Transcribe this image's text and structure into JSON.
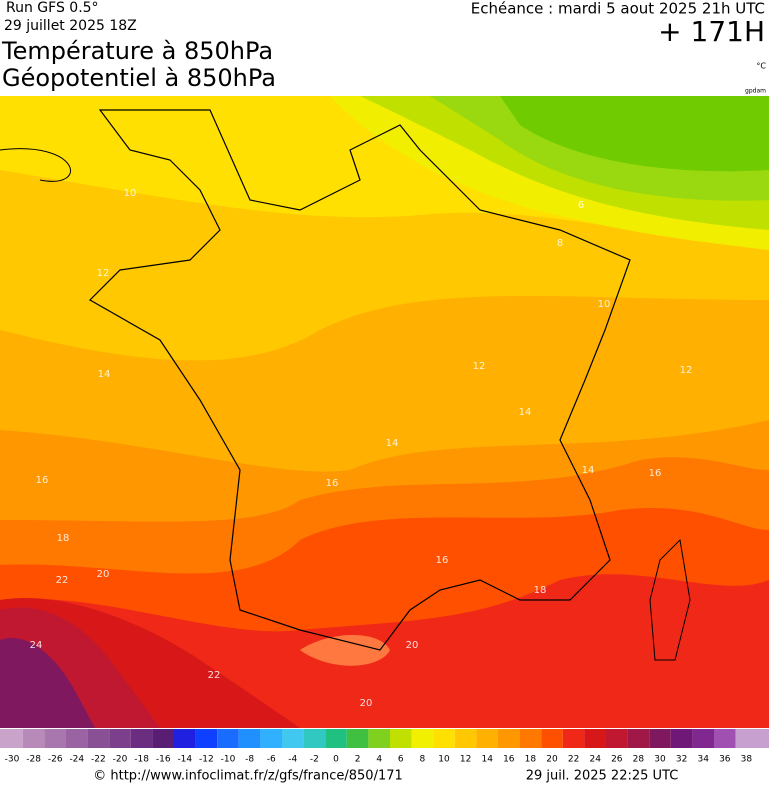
{
  "header": {
    "run": "Run GFS 0.5°",
    "run_date": "29 juillet 2025 18Z",
    "title_1": "Température à 850hPa",
    "title_2": "Géopotentiel à 850hPa",
    "forecast": "Echéance : mardi 5 aout 2025 21h UTC",
    "lead": "+ 171H",
    "unit": "°C",
    "source_tag": "gpdam"
  },
  "contour_labels": [
    10,
    12,
    14,
    16,
    18,
    20,
    22,
    24,
    22,
    20,
    20,
    6,
    8,
    10,
    12,
    12,
    14,
    14,
    16,
    16,
    14,
    16,
    18
  ],
  "colorbar": {
    "ticks": [
      -30,
      -28,
      -26,
      -24,
      -22,
      -20,
      -18,
      -16,
      -14,
      -12,
      -10,
      -8,
      -6,
      -4,
      -2,
      0,
      2,
      4,
      6,
      8,
      10,
      12,
      14,
      16,
      18,
      20,
      22,
      24,
      26,
      28,
      30,
      32,
      34,
      36,
      38
    ],
    "colors": [
      "#c9a3c9",
      "#b78ab9",
      "#a877ad",
      "#9a63a2",
      "#8a5096",
      "#7c3f8b",
      "#6b2d80",
      "#5a1d74",
      "#2020e0",
      "#1040ff",
      "#1a6cff",
      "#2090ff",
      "#30b0ff",
      "#40c8f0",
      "#30c8c0",
      "#20c080",
      "#40c040",
      "#80d020",
      "#c0e000",
      "#f0f000",
      "#ffe000",
      "#ffc800",
      "#ffb000",
      "#ff9800",
      "#ff7800",
      "#ff5000",
      "#f02818",
      "#d81818",
      "#c01830",
      "#a01848",
      "#801860",
      "#701878",
      "#802890",
      "#a050b0",
      "#c8a0d0"
    ]
  },
  "footer": {
    "url": "© http://www.infoclimat.fr/z/gfs/france/850/171",
    "time": "29 juil. 2025 22:25 UTC"
  }
}
